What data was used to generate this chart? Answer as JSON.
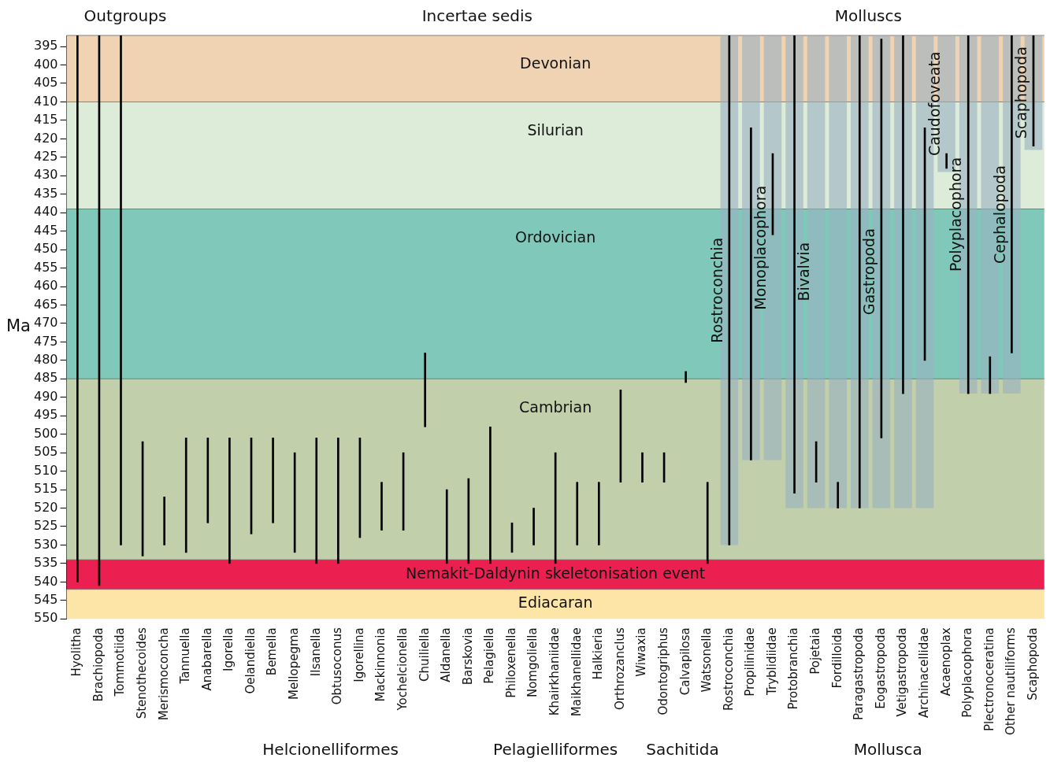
{
  "chart_data": {
    "type": "bar",
    "ylabel": "Ma",
    "legend": false,
    "categories": [
      "Hyolitha",
      "Brachiopoda",
      "Tommotiida",
      "Stenothecoides",
      "Merismoconcha",
      "Tannuella",
      "Anabarella",
      "Igorella",
      "Oelandiella",
      "Bemella",
      "Mellopegma",
      "Ilsanella",
      "Obtusoconus",
      "Igorellina",
      "Mackinnonia",
      "Yochelcionella",
      "Chuiliella",
      "Aldanella",
      "Barskovia",
      "Pelagiella",
      "Philoxenella",
      "Nomgoliella",
      "Khairkhaniidae",
      "Maikhanellidae",
      "Halkieria",
      "Orthrozanclus",
      "Wiwaxia",
      "Odontogriphus",
      "Calvapilosa",
      "Watsonella",
      "Rostroconchia",
      "Propilinidae",
      "Tryblidiidae",
      "Protobranchia",
      "Pojetaia",
      "Fordilloida",
      "Paragastropoda",
      "Eogastropoda",
      "Vetigastropoda",
      "Archinacellidae",
      "Acaenoplax",
      "Polyplacophora",
      "Plectronoceratina",
      "Other nautiliforms",
      "Scaphopoda"
    ],
    "series": [
      {
        "color": "#000000",
        "base": [
          392,
          392,
          392,
          502,
          517,
          501,
          501,
          501,
          501,
          501,
          505,
          501,
          501,
          501,
          513,
          505,
          478,
          515,
          512,
          498,
          524,
          520,
          505,
          513,
          513,
          488,
          505,
          505,
          483,
          513,
          392,
          417,
          424,
          392,
          502,
          513,
          392,
          393,
          392,
          417,
          424,
          392,
          479,
          392,
          392
        ],
        "values": [
          148,
          149,
          138,
          31,
          13,
          31,
          23,
          34,
          26,
          23,
          27,
          34,
          34,
          27,
          13,
          21,
          20,
          20,
          23,
          37,
          8,
          10,
          30,
          17,
          17,
          25,
          8,
          8,
          3,
          22,
          138,
          90,
          22,
          124,
          11,
          7,
          128,
          108,
          97,
          63,
          4,
          97,
          10,
          86,
          30
        ]
      },
      {
        "name": "Rostroconchia",
        "color": "#9ab0c2",
        "base": [
          null,
          null,
          null,
          null,
          null,
          null,
          null,
          null,
          null,
          null,
          null,
          null,
          null,
          null,
          null,
          null,
          null,
          null,
          null,
          null,
          null,
          null,
          null,
          null,
          null,
          null,
          null,
          null,
          null,
          null,
          392,
          null,
          null,
          null,
          null,
          null,
          null,
          null,
          null,
          null,
          null,
          null,
          null,
          null,
          null
        ],
        "values": [
          null,
          null,
          null,
          null,
          null,
          null,
          null,
          null,
          null,
          null,
          null,
          null,
          null,
          null,
          null,
          null,
          null,
          null,
          null,
          null,
          null,
          null,
          null,
          null,
          null,
          null,
          null,
          null,
          null,
          null,
          138,
          null,
          null,
          null,
          null,
          null,
          null,
          null,
          null,
          null,
          null,
          null,
          null,
          null,
          null
        ]
      },
      {
        "name": "Monoplacophora",
        "color": "#9ab0c2",
        "base": [
          null,
          null,
          null,
          null,
          null,
          null,
          null,
          null,
          null,
          null,
          null,
          null,
          null,
          null,
          null,
          null,
          null,
          null,
          null,
          null,
          null,
          null,
          null,
          null,
          null,
          null,
          null,
          null,
          null,
          null,
          null,
          392,
          392,
          null,
          null,
          null,
          null,
          null,
          null,
          null,
          null,
          null,
          null,
          null,
          null
        ],
        "values": [
          null,
          null,
          null,
          null,
          null,
          null,
          null,
          null,
          null,
          null,
          null,
          null,
          null,
          null,
          null,
          null,
          null,
          null,
          null,
          null,
          null,
          null,
          null,
          null,
          null,
          null,
          null,
          null,
          null,
          null,
          null,
          115,
          115,
          null,
          null,
          null,
          null,
          null,
          null,
          null,
          null,
          null,
          null,
          null,
          null
        ]
      },
      {
        "name": "Bivalvia",
        "color": "#9ab0c2",
        "base": [
          null,
          null,
          null,
          null,
          null,
          null,
          null,
          null,
          null,
          null,
          null,
          null,
          null,
          null,
          null,
          null,
          null,
          null,
          null,
          null,
          null,
          null,
          null,
          null,
          null,
          null,
          null,
          null,
          null,
          null,
          null,
          null,
          null,
          392,
          392,
          392,
          null,
          null,
          null,
          null,
          null,
          null,
          null,
          null,
          null
        ],
        "values": [
          null,
          null,
          null,
          null,
          null,
          null,
          null,
          null,
          null,
          null,
          null,
          null,
          null,
          null,
          null,
          null,
          null,
          null,
          null,
          null,
          null,
          null,
          null,
          null,
          null,
          null,
          null,
          null,
          null,
          null,
          null,
          null,
          null,
          128,
          128,
          128,
          null,
          null,
          null,
          null,
          null,
          null,
          null,
          null,
          null
        ]
      },
      {
        "name": "Gastropoda",
        "color": "#9ab0c2",
        "base": [
          null,
          null,
          null,
          null,
          null,
          null,
          null,
          null,
          null,
          null,
          null,
          null,
          null,
          null,
          null,
          null,
          null,
          null,
          null,
          null,
          null,
          null,
          null,
          null,
          null,
          null,
          null,
          null,
          null,
          null,
          null,
          null,
          null,
          null,
          null,
          null,
          392,
          392,
          392,
          392,
          null,
          null,
          null,
          null,
          null
        ],
        "values": [
          null,
          null,
          null,
          null,
          null,
          null,
          null,
          null,
          null,
          null,
          null,
          null,
          null,
          null,
          null,
          null,
          null,
          null,
          null,
          null,
          null,
          null,
          null,
          null,
          null,
          null,
          null,
          null,
          null,
          null,
          null,
          null,
          null,
          null,
          null,
          null,
          128,
          128,
          128,
          128,
          null,
          null,
          null,
          null,
          null
        ]
      },
      {
        "name": "Caudofoveata",
        "color": "#9ab0c2",
        "base": [
          null,
          null,
          null,
          null,
          null,
          null,
          null,
          null,
          null,
          null,
          null,
          null,
          null,
          null,
          null,
          null,
          null,
          null,
          null,
          null,
          null,
          null,
          null,
          null,
          null,
          null,
          null,
          null,
          null,
          null,
          null,
          null,
          null,
          null,
          null,
          null,
          null,
          null,
          null,
          null,
          392,
          null,
          null,
          null,
          null
        ],
        "values": [
          null,
          null,
          null,
          null,
          null,
          null,
          null,
          null,
          null,
          null,
          null,
          null,
          null,
          null,
          null,
          null,
          null,
          null,
          null,
          null,
          null,
          null,
          null,
          null,
          null,
          null,
          null,
          null,
          null,
          null,
          null,
          null,
          null,
          null,
          null,
          null,
          null,
          null,
          null,
          null,
          37,
          null,
          null,
          null,
          null
        ]
      },
      {
        "name": "Polyplacophora",
        "color": "#9ab0c2",
        "base": [
          null,
          null,
          null,
          null,
          null,
          null,
          null,
          null,
          null,
          null,
          null,
          null,
          null,
          null,
          null,
          null,
          null,
          null,
          null,
          null,
          null,
          null,
          null,
          null,
          null,
          null,
          null,
          null,
          null,
          null,
          null,
          null,
          null,
          null,
          null,
          null,
          null,
          null,
          null,
          null,
          null,
          392,
          null,
          null,
          null
        ],
        "values": [
          null,
          null,
          null,
          null,
          null,
          null,
          null,
          null,
          null,
          null,
          null,
          null,
          null,
          null,
          null,
          null,
          null,
          null,
          null,
          null,
          null,
          null,
          null,
          null,
          null,
          null,
          null,
          null,
          null,
          null,
          null,
          null,
          null,
          null,
          null,
          null,
          null,
          null,
          null,
          null,
          null,
          97,
          null,
          null,
          null
        ]
      },
      {
        "name": "Cephalopoda",
        "color": "#9ab0c2",
        "base": [
          null,
          null,
          null,
          null,
          null,
          null,
          null,
          null,
          null,
          null,
          null,
          null,
          null,
          null,
          null,
          null,
          null,
          null,
          null,
          null,
          null,
          null,
          null,
          null,
          null,
          null,
          null,
          null,
          null,
          null,
          null,
          null,
          null,
          null,
          null,
          null,
          null,
          null,
          null,
          null,
          null,
          null,
          392,
          392,
          null
        ],
        "values": [
          null,
          null,
          null,
          null,
          null,
          null,
          null,
          null,
          null,
          null,
          null,
          null,
          null,
          null,
          null,
          null,
          null,
          null,
          null,
          null,
          null,
          null,
          null,
          null,
          null,
          null,
          null,
          null,
          null,
          null,
          null,
          null,
          null,
          null,
          null,
          null,
          null,
          null,
          null,
          null,
          null,
          null,
          97,
          97,
          null
        ]
      },
      {
        "name": "Scaphopoda",
        "color": "#9ab0c2",
        "base": [
          null,
          null,
          null,
          null,
          null,
          null,
          null,
          null,
          null,
          null,
          null,
          null,
          null,
          null,
          null,
          null,
          null,
          null,
          null,
          null,
          null,
          null,
          null,
          null,
          null,
          null,
          null,
          null,
          null,
          null,
          null,
          null,
          null,
          null,
          null,
          null,
          null,
          null,
          null,
          null,
          null,
          null,
          null,
          null,
          392
        ],
        "values": [
          null,
          null,
          null,
          null,
          null,
          null,
          null,
          null,
          null,
          null,
          null,
          null,
          null,
          null,
          null,
          null,
          null,
          null,
          null,
          null,
          null,
          null,
          null,
          null,
          null,
          null,
          null,
          null,
          null,
          null,
          null,
          null,
          null,
          null,
          null,
          null,
          null,
          null,
          null,
          null,
          null,
          null,
          null,
          null,
          31
        ]
      }
    ],
    "ylim": [
      550,
      392
    ],
    "yticks": [
      395,
      400,
      405,
      410,
      415,
      420,
      425,
      430,
      435,
      440,
      445,
      450,
      455,
      460,
      465,
      470,
      475,
      480,
      485,
      490,
      495,
      500,
      505,
      510,
      515,
      520,
      525,
      530,
      535,
      540,
      545,
      550
    ],
    "bands": [
      {
        "axis": "y",
        "from": 392,
        "to": 410,
        "label": "Devonian",
        "color": "#efd3b2"
      },
      {
        "axis": "y",
        "from": 410,
        "to": 439,
        "label": "Silurian",
        "color": "#dcecd9"
      },
      {
        "axis": "y",
        "from": 439,
        "to": 485,
        "label": "Ordovician",
        "color": "#80c8b9"
      },
      {
        "axis": "y",
        "from": 485,
        "to": 534,
        "label": "Cambrian",
        "color": "#c1cfab"
      },
      {
        "axis": "y",
        "from": 534,
        "to": 542,
        "label": "Nemakit-Daldynin skeletonisation event",
        "color": "#ec1f51"
      },
      {
        "axis": "y",
        "from": 542,
        "to": 550,
        "label": "Ediacaran",
        "color": "#fce5a6"
      }
    ],
    "annotations": [
      "Outgroups",
      "Incertae sedis",
      "Molluscs",
      "Helcionelliformes",
      "Pelagielliformes",
      "Sachitida",
      "Mollusca"
    ]
  }
}
